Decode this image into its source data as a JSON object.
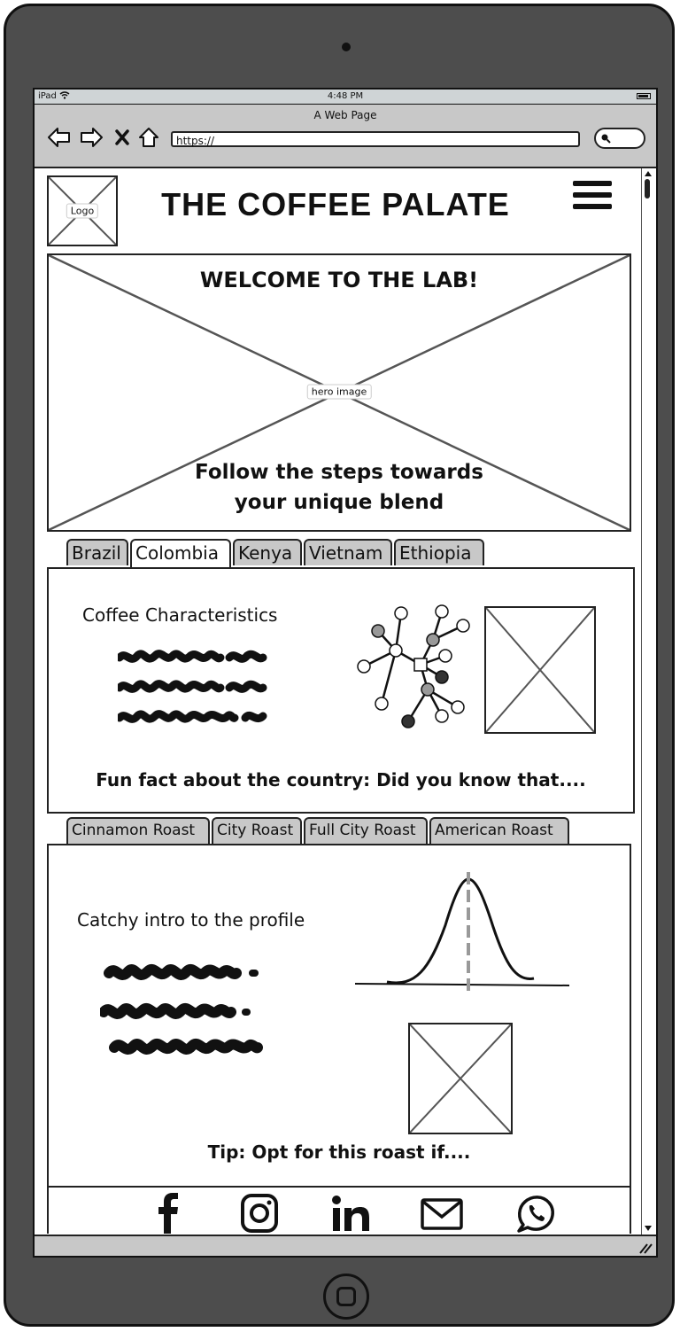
{
  "status_bar": {
    "device": "iPad",
    "time": "4:48 PM"
  },
  "browser": {
    "page_title": "A Web Page",
    "url": "https://"
  },
  "header": {
    "logo_label": "Logo",
    "site_title": "THE COFFEE PALATE"
  },
  "hero": {
    "heading": "WELCOME TO THE LAB!",
    "image_label": "hero image",
    "subheading_line1": "Follow the steps towards",
    "subheading_line2": "your unique blend"
  },
  "country_tabs": {
    "items": [
      "Brazil",
      "Colombia",
      "Kenya",
      "Vietnam",
      "Ethiopia"
    ],
    "active": "Colombia"
  },
  "country_panel": {
    "heading": "Coffee Characteristics",
    "fun_fact": "Fun fact about the country: Did you know that...."
  },
  "roast_tabs": {
    "items": [
      "Cinnamon Roast",
      "City Roast",
      "Full City Roast",
      "American Roast"
    ]
  },
  "roast_panel": {
    "heading": "Catchy intro to the profile",
    "tip": "Tip: Opt for this roast if...."
  },
  "footer": {
    "icons": [
      "facebook-icon",
      "instagram-icon",
      "linkedin-icon",
      "email-icon",
      "whatsapp-icon"
    ]
  }
}
